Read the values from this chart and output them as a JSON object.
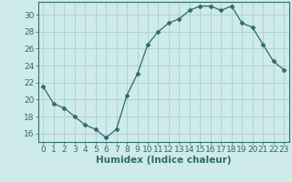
{
  "x": [
    0,
    1,
    2,
    3,
    4,
    5,
    6,
    7,
    8,
    9,
    10,
    11,
    12,
    13,
    14,
    15,
    16,
    17,
    18,
    19,
    20,
    21,
    22,
    23
  ],
  "y": [
    21.5,
    19.5,
    19.0,
    18.0,
    17.0,
    16.5,
    15.5,
    16.5,
    20.5,
    23.0,
    26.5,
    28.0,
    29.0,
    29.5,
    30.5,
    31.0,
    31.0,
    30.5,
    31.0,
    29.0,
    28.5,
    26.5,
    24.5,
    23.5
  ],
  "line_color": "#2e6b6b",
  "marker": "D",
  "marker_size": 2.5,
  "bg_color": "#ceeaea",
  "grid_color": "#aacfcf",
  "xlabel": "Humidex (Indice chaleur)",
  "ylim": [
    15,
    31.5
  ],
  "xlim": [
    -0.5,
    23.5
  ],
  "yticks": [
    16,
    18,
    20,
    22,
    24,
    26,
    28,
    30
  ],
  "xticks": [
    0,
    1,
    2,
    3,
    4,
    5,
    6,
    7,
    8,
    9,
    10,
    11,
    12,
    13,
    14,
    15,
    16,
    17,
    18,
    19,
    20,
    21,
    22,
    23
  ],
  "tick_color": "#2e6b6b",
  "label_color": "#2e6b6b",
  "font_size_xlabel": 7.5,
  "font_size_ticks": 6.5,
  "spine_color": "#2e6b6b"
}
